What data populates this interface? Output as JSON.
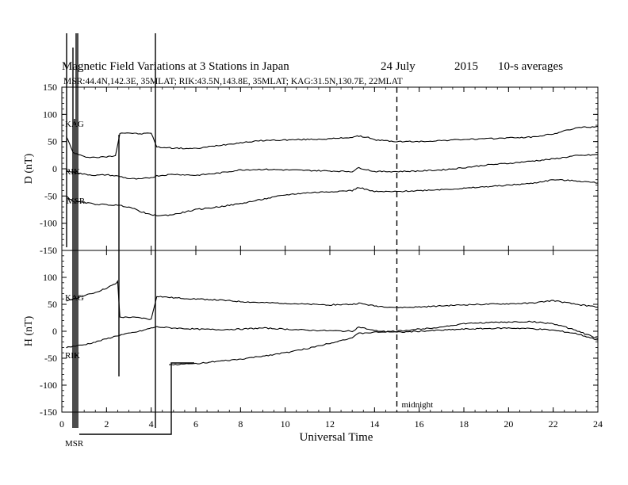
{
  "chart_data": {
    "type": "line",
    "title": "Magnetic Field Variations at 3 Stations in Japan",
    "date": "24 July",
    "year": "2015",
    "averaging": "10-s averages",
    "subtitle": "MSR:44.4N,142.3E, 35MLAT;  RIK:43.5N,143.8E, 35MLAT;  KAG:31.5N,130.7E, 22MLAT",
    "xlabel": "Universal Time",
    "xlim": [
      0,
      24
    ],
    "xticks": [
      "0",
      "2",
      "4",
      "6",
      "8",
      "10",
      "12",
      "14",
      "16",
      "18",
      "20",
      "22",
      "24"
    ],
    "midnight_label": "midnight",
    "midnight_ut": 15,
    "panels": [
      {
        "ylabel": "D (nT)",
        "ylim": [
          -150,
          150
        ],
        "yticks": [
          "150",
          "100",
          "50",
          "0",
          "-50",
          "-100",
          "-150"
        ],
        "series": [
          {
            "name": "KAG",
            "points": [
              [
                0.2,
                60
              ],
              [
                0.5,
                30
              ],
              [
                1.0,
                22
              ],
              [
                1.5,
                21
              ],
              [
                2.0,
                22
              ],
              [
                2.4,
                24
              ],
              [
                2.6,
                66
              ],
              [
                3.0,
                66
              ],
              [
                3.5,
                64
              ],
              [
                4.0,
                66
              ],
              [
                4.25,
                40
              ],
              [
                5,
                38
              ],
              [
                6,
                37
              ],
              [
                7,
                43
              ],
              [
                8,
                48
              ],
              [
                9,
                52
              ],
              [
                10,
                53
              ],
              [
                11,
                54
              ],
              [
                12,
                55
              ],
              [
                13,
                58
              ],
              [
                13.3,
                60
              ],
              [
                13.8,
                57
              ],
              [
                14,
                53
              ],
              [
                15,
                50
              ],
              [
                16,
                50
              ],
              [
                17,
                52
              ],
              [
                18,
                54
              ],
              [
                19,
                55
              ],
              [
                20,
                57
              ],
              [
                21,
                58
              ],
              [
                22,
                64
              ],
              [
                23,
                75
              ],
              [
                24,
                78
              ]
            ]
          },
          {
            "name": "RIK",
            "points": [
              [
                0.2,
                -4
              ],
              [
                0.5,
                -6
              ],
              [
                1.0,
                -10
              ],
              [
                1.5,
                -12
              ],
              [
                2.0,
                -11
              ],
              [
                2.6,
                -14
              ],
              [
                3.0,
                -18
              ],
              [
                3.5,
                -19
              ],
              [
                4.0,
                -16
              ],
              [
                4.25,
                -13
              ],
              [
                5,
                -10
              ],
              [
                6,
                -12
              ],
              [
                7,
                -8
              ],
              [
                8,
                -2
              ],
              [
                9,
                -1
              ],
              [
                10,
                -2
              ],
              [
                11,
                -3
              ],
              [
                12,
                -4
              ],
              [
                13,
                -5
              ],
              [
                13.3,
                2
              ],
              [
                13.8,
                -3
              ],
              [
                14,
                -5
              ],
              [
                15,
                -5
              ],
              [
                16,
                -4
              ],
              [
                17,
                -2
              ],
              [
                18,
                2
              ],
              [
                19,
                7
              ],
              [
                20,
                10
              ],
              [
                21,
                14
              ],
              [
                22,
                18
              ],
              [
                23,
                24
              ],
              [
                24,
                26
              ]
            ]
          },
          {
            "name": "MSR",
            "points": [
              [
                0.2,
                -50
              ],
              [
                0.5,
                -60
              ],
              [
                1.0,
                -62
              ],
              [
                1.5,
                -65
              ],
              [
                2.0,
                -66
              ],
              [
                2.5,
                -67
              ],
              [
                3.0,
                -70
              ],
              [
                3.5,
                -78
              ],
              [
                4.0,
                -85
              ],
              [
                4.5,
                -86
              ],
              [
                5,
                -84
              ],
              [
                6,
                -75
              ],
              [
                7,
                -70
              ],
              [
                8,
                -64
              ],
              [
                9,
                -56
              ],
              [
                10,
                -48
              ],
              [
                11,
                -44
              ],
              [
                12,
                -42
              ],
              [
                13,
                -40
              ],
              [
                13.3,
                -34
              ],
              [
                13.8,
                -40
              ],
              [
                14,
                -42
              ],
              [
                15,
                -42
              ],
              [
                16,
                -40
              ],
              [
                17,
                -38
              ],
              [
                18,
                -36
              ],
              [
                19,
                -33
              ],
              [
                20,
                -30
              ],
              [
                21,
                -27
              ],
              [
                22,
                -20
              ],
              [
                23,
                -22
              ],
              [
                24,
                -26
              ]
            ]
          }
        ]
      },
      {
        "ylabel": "H (nT)",
        "ylim": [
          -150,
          150
        ],
        "yticks": [
          "150",
          "100",
          "50",
          "0",
          "-50",
          "-100",
          "-150"
        ],
        "series": [
          {
            "name": "KAG",
            "points": [
              [
                0.2,
                55
              ],
              [
                0.5,
                60
              ],
              [
                1.0,
                66
              ],
              [
                1.5,
                72
              ],
              [
                2.0,
                80
              ],
              [
                2.4,
                88
              ],
              [
                2.5,
                92
              ],
              [
                2.6,
                26
              ],
              [
                3.0,
                26
              ],
              [
                3.5,
                25
              ],
              [
                4.0,
                22
              ],
              [
                4.25,
                65
              ],
              [
                5,
                62
              ],
              [
                6,
                60
              ],
              [
                7,
                58
              ],
              [
                8,
                55
              ],
              [
                9,
                53
              ],
              [
                10,
                52
              ],
              [
                11,
                50
              ],
              [
                12,
                49
              ],
              [
                13,
                50
              ],
              [
                13.3,
                52
              ],
              [
                14,
                47
              ],
              [
                15,
                44
              ],
              [
                16,
                45
              ],
              [
                17,
                47
              ],
              [
                18,
                49
              ],
              [
                19,
                50
              ],
              [
                20,
                51
              ],
              [
                21,
                52
              ],
              [
                22,
                57
              ],
              [
                23,
                50
              ],
              [
                24,
                45
              ]
            ]
          },
          {
            "name": "RIK",
            "points": [
              [
                0.2,
                -30
              ],
              [
                0.5,
                -28
              ],
              [
                1.0,
                -25
              ],
              [
                1.5,
                -20
              ],
              [
                2.0,
                -14
              ],
              [
                2.5,
                -8
              ],
              [
                3.0,
                -4
              ],
              [
                3.5,
                0
              ],
              [
                4.0,
                6
              ],
              [
                4.25,
                8
              ],
              [
                5,
                6
              ],
              [
                6,
                4
              ],
              [
                7,
                3
              ],
              [
                8,
                4
              ],
              [
                9,
                6
              ],
              [
                10,
                4
              ],
              [
                11,
                2
              ],
              [
                12,
                1
              ],
              [
                13,
                0
              ],
              [
                13.3,
                8
              ],
              [
                14,
                1
              ],
              [
                15,
                -2
              ],
              [
                16,
                0
              ],
              [
                17,
                2
              ],
              [
                18,
                4
              ],
              [
                19,
                5
              ],
              [
                20,
                6
              ],
              [
                21,
                5
              ],
              [
                22,
                2
              ],
              [
                23,
                -4
              ],
              [
                24,
                -16
              ]
            ]
          },
          {
            "name": "MSR",
            "points": [
              [
                4.8,
                -62
              ],
              [
                5,
                -62
              ],
              [
                6,
                -60
              ],
              [
                7,
                -56
              ],
              [
                8,
                -52
              ],
              [
                9,
                -46
              ],
              [
                10,
                -40
              ],
              [
                11,
                -32
              ],
              [
                12,
                -22
              ],
              [
                13,
                -12
              ],
              [
                13.3,
                -4
              ],
              [
                14,
                -2
              ],
              [
                15,
                0
              ],
              [
                16,
                4
              ],
              [
                17,
                8
              ],
              [
                18,
                14
              ],
              [
                19,
                16
              ],
              [
                20,
                17
              ],
              [
                21,
                18
              ],
              [
                22,
                14
              ],
              [
                23,
                2
              ],
              [
                24,
                -14
              ]
            ]
          }
        ]
      }
    ]
  }
}
